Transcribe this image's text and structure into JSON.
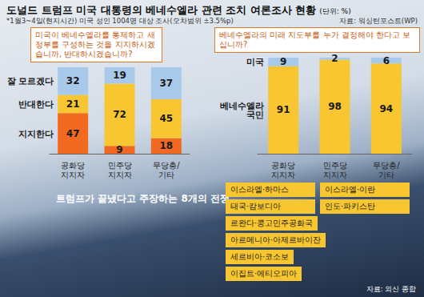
{
  "title": "도널드 트럼프 미국 대통령의 베네수엘라 관련 조치 여론조사 현황",
  "unit": "(단위: %)",
  "note": "*1월3~4일(현지시간) 미국 성인 1004명 대상 조사(오차범위 ±3.5%p)",
  "source": "자료: 워싱턴포스트(WP)",
  "chart_data": [
    {
      "type": "bar",
      "title": "미국이 베네수엘라를 통제하고 새 정부를 구성하는 것을 지지하시겠습니까, 반대하시겠습니까?",
      "categories": [
        "공화당\n지지자",
        "민주당\n지지자",
        "무당층/\n기타"
      ],
      "series": [
        {
          "name": "지지한다",
          "color": "#f26a21",
          "values": [
            47,
            9,
            18
          ]
        },
        {
          "name": "반대한다",
          "color": "#f8c630",
          "values": [
            21,
            72,
            45
          ]
        },
        {
          "name": "잘 모르겠다",
          "color": "#a9c9ea",
          "values": [
            32,
            19,
            37
          ]
        }
      ],
      "ylim": [
        0,
        100
      ],
      "stacked": true,
      "data_labels": true,
      "tick_labels": "x"
    },
    {
      "type": "bar",
      "title": "베네수엘라의 미래 지도부를 누가 결정해야 한다고 보십니까?",
      "categories": [
        "공화당\n지지자",
        "민주당\n지지자",
        "무당층/\n기타"
      ],
      "series": [
        {
          "name": "베네수엘라\n국민",
          "color": "#f8c630",
          "values": [
            91,
            98,
            94
          ]
        },
        {
          "name": "미국",
          "color": "#a9c9ea",
          "values": [
            9,
            2,
            6
          ]
        }
      ],
      "ylim": [
        0,
        100
      ],
      "stacked": true,
      "data_labels": true,
      "tick_labels": "x"
    }
  ],
  "wars": {
    "title": "트럼프가 끝냈다고 주장하는 8개의 전쟁",
    "items": [
      "이스라엘·하마스",
      "이스라엘·이란",
      "태국·캄보디아",
      "인도·파키스탄",
      "르완다·콩고민주공화국",
      "아르메니아·아제르바이잔",
      "세르비아·코소보",
      "이집트·에티오피아"
    ],
    "source": "자료: 외신 종합"
  }
}
